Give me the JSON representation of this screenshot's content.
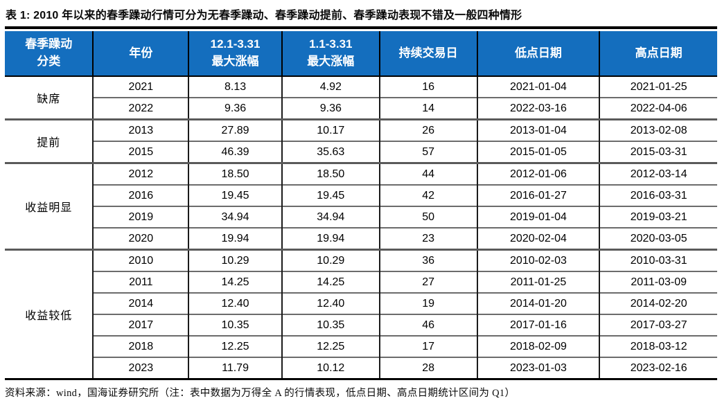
{
  "chart_data": {
    "type": "table",
    "title": "表 1: 2010 年以来的春季躁动行情可分为无春季躁动、春季躁动提前、春季躁动表现不错及一般四种情形",
    "col_keys": [
      "category",
      "year",
      "max_gain_12_1_to_3_31",
      "max_gain_1_1_to_3_31",
      "trading_days",
      "low_date",
      "high_date"
    ],
    "headers": [
      {
        "line1": "春季躁动",
        "line2": "分类"
      },
      {
        "line1": "年份",
        "line2": ""
      },
      {
        "line1": "12.1-3.31",
        "line2": "最大涨幅"
      },
      {
        "line1": "1.1-3.31",
        "line2": "最大涨幅"
      },
      {
        "line1": "持续交易日",
        "line2": ""
      },
      {
        "line1": "低点日期",
        "line2": ""
      },
      {
        "line1": "高点日期",
        "line2": ""
      }
    ],
    "groups": [
      {
        "category": "缺席",
        "rows": [
          [
            "2021",
            "8.13",
            "4.92",
            "16",
            "2021-01-04",
            "2021-01-25"
          ],
          [
            "2022",
            "9.36",
            "9.36",
            "14",
            "2022-03-16",
            "2022-04-06"
          ]
        ]
      },
      {
        "category": "提前",
        "rows": [
          [
            "2013",
            "27.89",
            "10.17",
            "26",
            "2013-01-04",
            "2013-02-08"
          ],
          [
            "2015",
            "46.39",
            "35.63",
            "57",
            "2015-01-05",
            "2015-03-31"
          ]
        ]
      },
      {
        "category": "收益明显",
        "rows": [
          [
            "2012",
            "18.50",
            "18.50",
            "44",
            "2012-01-06",
            "2012-03-14"
          ],
          [
            "2016",
            "19.45",
            "19.45",
            "42",
            "2016-01-27",
            "2016-03-31"
          ],
          [
            "2019",
            "34.94",
            "34.94",
            "50",
            "2019-01-04",
            "2019-03-21"
          ],
          [
            "2020",
            "19.94",
            "19.94",
            "23",
            "2020-02-04",
            "2020-03-05"
          ]
        ]
      },
      {
        "category": "收益较低",
        "rows": [
          [
            "2010",
            "10.29",
            "10.29",
            "36",
            "2010-02-03",
            "2010-03-31"
          ],
          [
            "2011",
            "14.25",
            "14.25",
            "27",
            "2011-01-25",
            "2011-03-09"
          ],
          [
            "2014",
            "12.40",
            "12.40",
            "19",
            "2014-01-20",
            "2014-02-20"
          ],
          [
            "2017",
            "10.35",
            "10.35",
            "46",
            "2017-01-16",
            "2017-03-27"
          ],
          [
            "2018",
            "12.25",
            "12.25",
            "17",
            "2018-02-09",
            "2018-03-12"
          ],
          [
            "2023",
            "11.79",
            "10.12",
            "28",
            "2023-01-03",
            "2023-02-16"
          ]
        ]
      }
    ],
    "footnote": "资料来源：wind，国海证券研究所（注：表中数据为万得全 A 的行情表现，低点日期、高点日期统计区间为 Q1）"
  },
  "colors": {
    "header_bg": "#146EBE",
    "header_text": "#FFFFFF",
    "body_text": "#000000",
    "grid_gray": "#5A5A5A",
    "rule_black": "#000000"
  }
}
